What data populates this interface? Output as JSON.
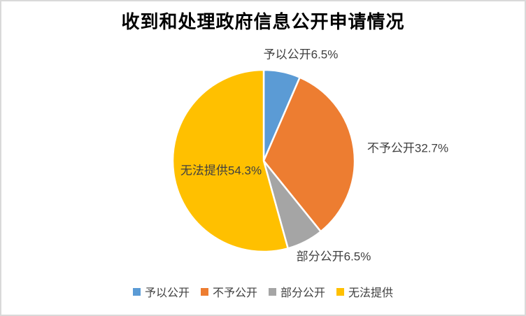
{
  "title": "收到和处理政府信息公开申请情况",
  "frame": {
    "background": "#FFFFFF",
    "border_color": "#D9D9D9"
  },
  "text_color": "#404040",
  "chart_data": {
    "type": "pie",
    "title": "收到和处理政府信息公开申请情况",
    "categories": [
      "予以公开",
      "不予公开",
      "部分公开",
      "无法提供"
    ],
    "values": [
      6.5,
      32.7,
      6.5,
      54.3
    ],
    "unit": "%",
    "colors": [
      "#5B9BD5",
      "#ED7D31",
      "#A5A5A5",
      "#FFC000"
    ],
    "ids": [
      "granted",
      "denied",
      "partial",
      "unavailable"
    ],
    "start_angle_deg": 0,
    "direction": "clockwise",
    "slice_border_color": "#FFFFFF",
    "legend_position": "bottom",
    "labels": [
      {
        "text": "予以公开6.5%",
        "placement": "outside-top"
      },
      {
        "text": "不予公开32.7%",
        "placement": "outside-right"
      },
      {
        "text": "部分公开6.5%",
        "placement": "outside-bottom"
      },
      {
        "text": "无法提供54.3%",
        "placement": "inside-left"
      }
    ]
  },
  "legend": {
    "items": [
      {
        "label": "予以公开",
        "color": "#5B9BD5"
      },
      {
        "label": "不予公开",
        "color": "#ED7D31"
      },
      {
        "label": "部分公开",
        "color": "#A5A5A5"
      },
      {
        "label": "无法提供",
        "color": "#FFC000"
      }
    ]
  }
}
